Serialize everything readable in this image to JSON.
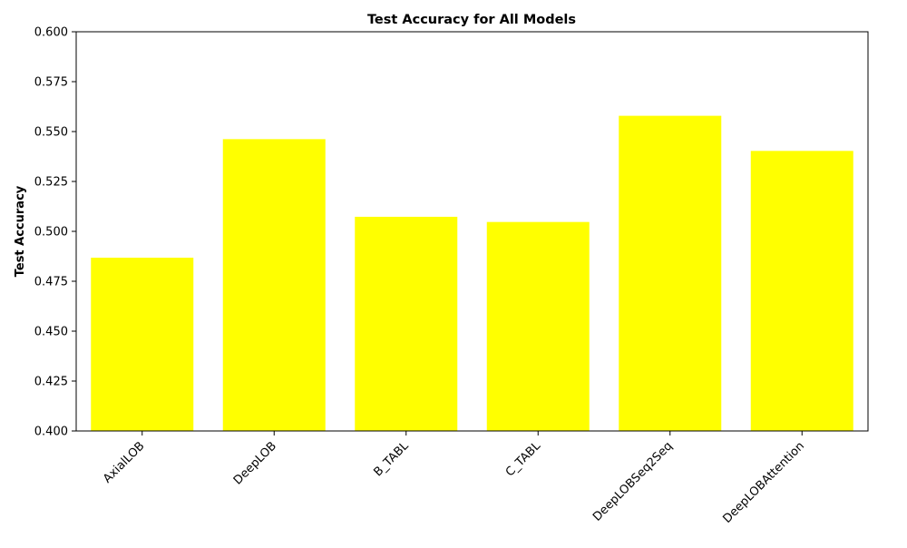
{
  "chart_data": {
    "type": "bar",
    "title": "Test Accuracy for All Models",
    "xlabel": "",
    "ylabel": "Test Accuracy",
    "categories": [
      "AxialLOB",
      "DeepLOB",
      "B_TABL",
      "C_TABL",
      "DeepLOBSeq2Seq",
      "DeepLOBAttention"
    ],
    "values": [
      0.4868,
      0.5462,
      0.5073,
      0.5047,
      0.5579,
      0.5403
    ],
    "ylim": [
      0.4,
      0.6
    ],
    "yticks": [
      0.4,
      0.425,
      0.45,
      0.475,
      0.5,
      0.525,
      0.55,
      0.575,
      0.6
    ],
    "ytick_labels": [
      "0.400",
      "0.425",
      "0.450",
      "0.475",
      "0.500",
      "0.525",
      "0.550",
      "0.575",
      "0.600"
    ],
    "grid": false,
    "legend": "none",
    "bar_color": "#ffff00"
  }
}
